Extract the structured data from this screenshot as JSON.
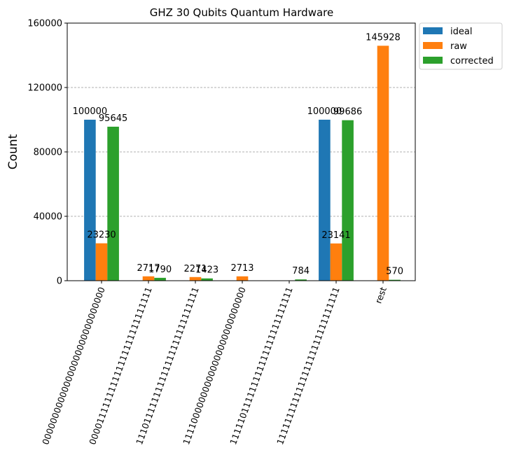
{
  "chart_data": {
    "type": "bar",
    "title": "GHZ 30 Qubits Quantum Hardware",
    "xlabel": "",
    "ylabel": "Count",
    "ylim": [
      0,
      160000
    ],
    "yticks": [
      0,
      40000,
      80000,
      120000,
      160000
    ],
    "grid": "y-dashed",
    "legend_position": "outside-top-right",
    "categories": [
      "000000000000000000000000000000",
      "000011111111111111111111111111",
      "111011111111111111111111111111",
      "111100000000000000000000000000",
      "111110111111111111111111111111",
      "111111111111111111111111111111",
      "rest"
    ],
    "series": [
      {
        "name": "ideal",
        "color": "#1f77b4",
        "values": [
          100000,
          0,
          0,
          0,
          0,
          100000,
          0
        ],
        "labels": [
          "100000",
          "",
          "",
          "",
          "",
          "100000",
          ""
        ]
      },
      {
        "name": "raw",
        "color": "#ff7f0e",
        "values": [
          23230,
          2717,
          2271,
          2713,
          0,
          23141,
          145928
        ],
        "labels": [
          "23230",
          "2717",
          "2271",
          "2713",
          "",
          "23141",
          "145928"
        ]
      },
      {
        "name": "corrected",
        "color": "#2ca02c",
        "values": [
          95645,
          1790,
          1423,
          0,
          784,
          99686,
          570
        ],
        "labels": [
          "95645",
          "1790",
          "1423",
          "",
          "784",
          "99686",
          "570"
        ]
      }
    ]
  }
}
